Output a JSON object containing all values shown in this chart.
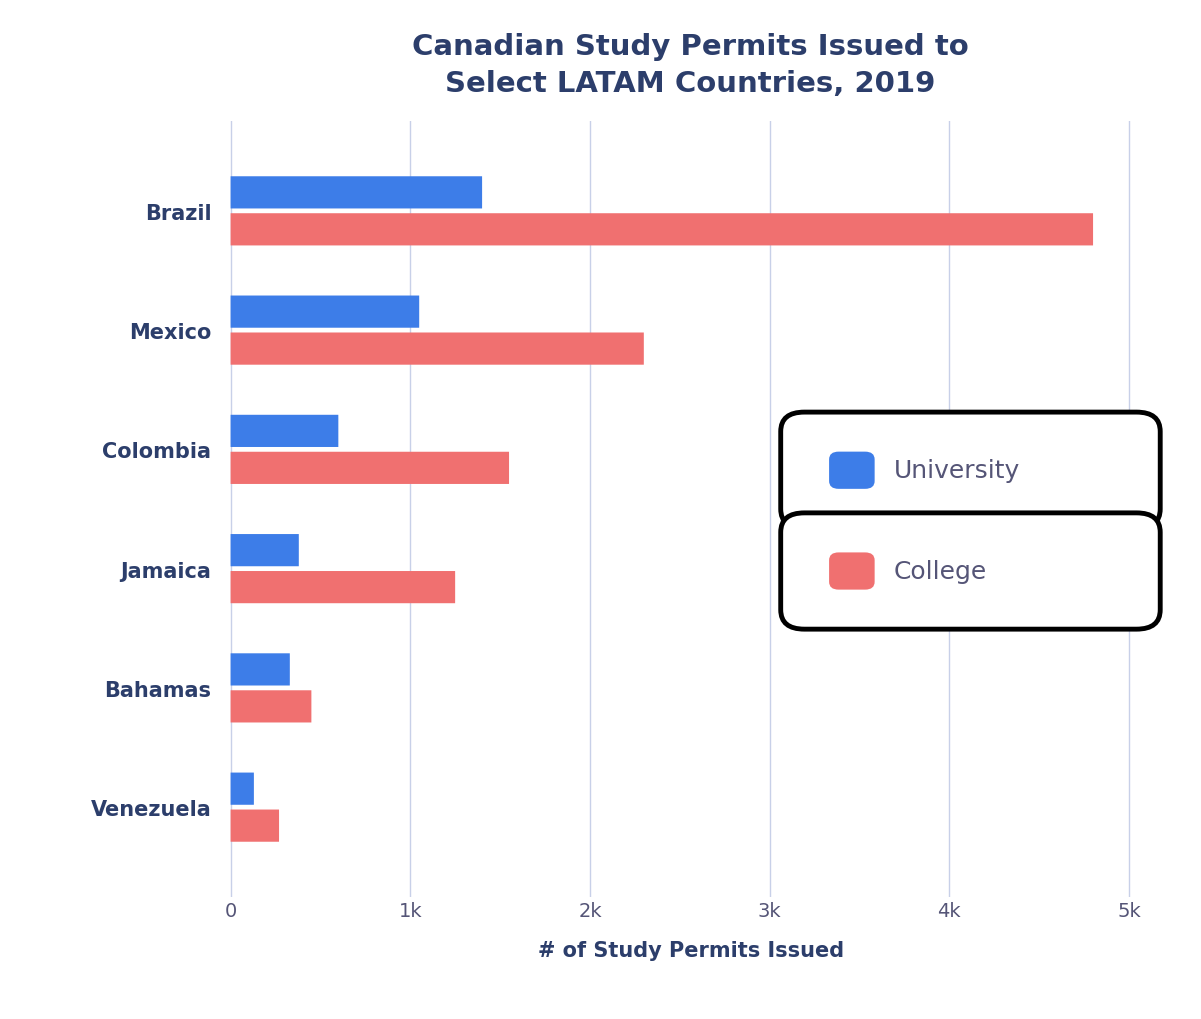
{
  "countries": [
    "Brazil",
    "Mexico",
    "Colombia",
    "Jamaica",
    "Bahamas",
    "Venezuela"
  ],
  "university": [
    1400,
    1050,
    600,
    380,
    330,
    130
  ],
  "college": [
    4800,
    2300,
    1550,
    1250,
    450,
    270
  ],
  "university_color": "#3d7de8",
  "college_color": "#f07070",
  "title_line1": "Canadian Study Permits Issued to",
  "title_line2": "Select LATAM Countries, 2019",
  "xlabel": "# of Study Permits Issued",
  "xticks": [
    0,
    1000,
    2000,
    3000,
    4000,
    5000
  ],
  "xticklabels": [
    "0",
    "1k",
    "2k",
    "3k",
    "4k",
    "5k"
  ],
  "xlim": [
    -80,
    5200
  ],
  "ylim": [
    -0.75,
    5.75
  ],
  "background_color": "#ffffff",
  "bar_height": 0.27,
  "bar_gap": 0.04,
  "title_fontsize": 21,
  "label_fontsize": 15,
  "tick_fontsize": 14,
  "country_fontsize": 15,
  "legend_fontsize": 18,
  "title_color": "#2c3e6b",
  "label_color": "#2c3e6b",
  "tick_color": "#555577",
  "country_color": "#2c3e6b",
  "grid_color": "#c8d0e8",
  "legend_text_color": "#555577"
}
